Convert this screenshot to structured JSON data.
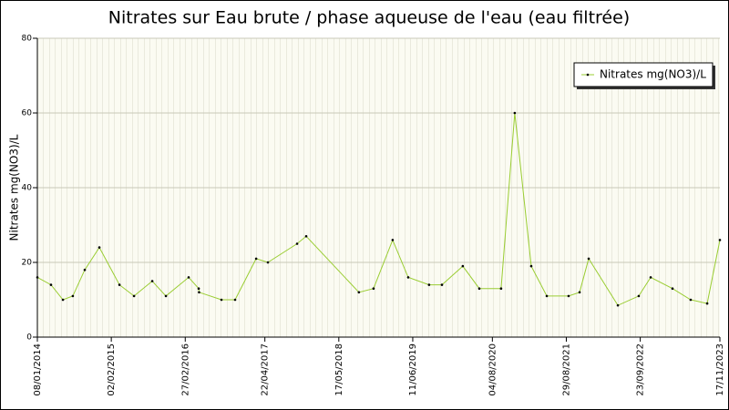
{
  "chart_data": {
    "type": "line",
    "title": "Nitrates sur Eau brute / phase aqueuse de l'eau (eau filtrée)",
    "y_label": "Nitrates mg(NO3)/L",
    "x": [
      "2014-01-08",
      "2014-03-21",
      "2014-05-23",
      "2014-07-14",
      "2014-09-15",
      "2014-12-01",
      "2015-03-17",
      "2015-06-02",
      "2015-09-06",
      "2015-11-17",
      "2016-03-16",
      "2016-05-08",
      "2016-05-10",
      "2016-09-05",
      "2016-11-16",
      "2017-03-07",
      "2017-05-08",
      "2017-10-09",
      "2017-11-26",
      "2018-08-31",
      "2018-11-16",
      "2019-02-25",
      "2019-05-18",
      "2019-09-05",
      "2019-11-12",
      "2020-03-01",
      "2020-05-27",
      "2020-09-19",
      "2020-11-30",
      "2021-02-25",
      "2021-05-18",
      "2021-09-10",
      "2021-11-07",
      "2021-12-25",
      "2022-05-28",
      "2022-09-15",
      "2022-11-17",
      "2023-03-12",
      "2023-06-16",
      "2023-09-11",
      "2023-11-17"
    ],
    "series": [
      {
        "name": "Nitrates mg(NO3)/L",
        "color": "#9acd32",
        "values": [
          16,
          14,
          10,
          11,
          18,
          24,
          14,
          11,
          15,
          11,
          16,
          13,
          12,
          10,
          10,
          21,
          20,
          25,
          27,
          12,
          13,
          26,
          16,
          14,
          14,
          19,
          13,
          13,
          60,
          19,
          11,
          11,
          12,
          21,
          8.5,
          11,
          16,
          13,
          10,
          9,
          26
        ]
      }
    ],
    "xlim": [
      "2014-01-08",
      "2023-11-17"
    ],
    "xticks": [
      {
        "value": "2014-01-08",
        "label": "08/01/2014"
      },
      {
        "value": "2015-02-02",
        "label": "02/02/2015"
      },
      {
        "value": "2016-02-27",
        "label": "27/02/2016"
      },
      {
        "value": "2017-04-22",
        "label": "22/04/2017"
      },
      {
        "value": "2018-05-17",
        "label": "17/05/2018"
      },
      {
        "value": "2019-06-11",
        "label": "11/06/2019"
      },
      {
        "value": "2020-08-04",
        "label": "04/08/2020"
      },
      {
        "value": "2021-08-29",
        "label": "29/08/2021"
      },
      {
        "value": "2022-09-23",
        "label": "23/09/2022"
      },
      {
        "value": "2023-11-17",
        "label": "17/11/2023"
      }
    ],
    "ylim": [
      0,
      80
    ],
    "yticks": [
      0,
      20,
      40,
      60,
      80
    ],
    "grid": true,
    "legend": "top-right"
  }
}
